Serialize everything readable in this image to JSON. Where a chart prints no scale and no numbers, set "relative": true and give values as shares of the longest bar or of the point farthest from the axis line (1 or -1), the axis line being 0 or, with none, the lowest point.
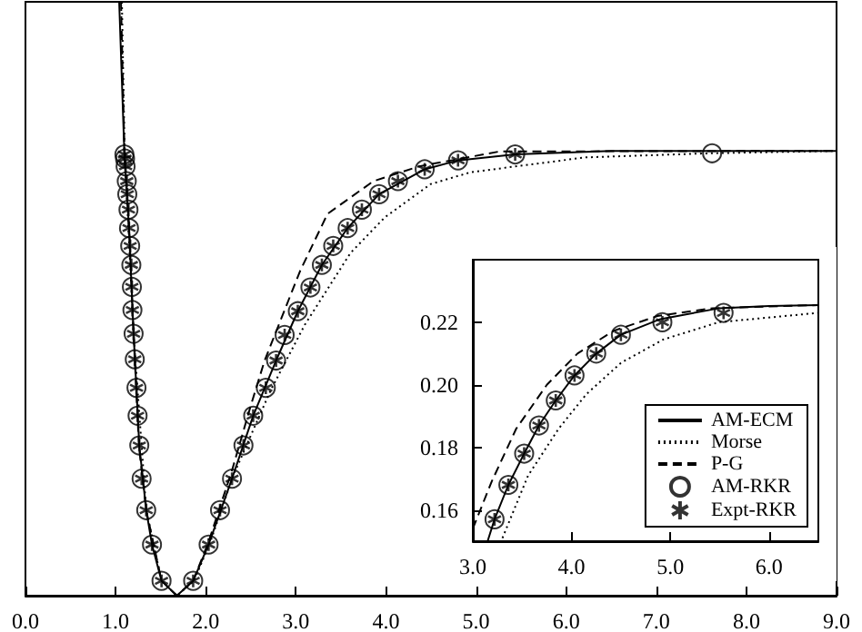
{
  "chart_data": [
    {
      "type": "line",
      "relative": true,
      "xlim": [
        0,
        9
      ],
      "xticks": [
        {
          "value": 0,
          "label": "0.0"
        },
        {
          "value": 1,
          "label": "1.0"
        },
        {
          "value": 2,
          "label": "2.0"
        },
        {
          "value": 3,
          "label": "3.0"
        },
        {
          "value": 4,
          "label": "4.0"
        },
        {
          "value": 5,
          "label": "5.0"
        },
        {
          "value": 6,
          "label": "6.0"
        },
        {
          "value": 7,
          "label": "7.0"
        },
        {
          "value": 8,
          "label": "8.0"
        },
        {
          "value": 9,
          "label": "9.0"
        }
      ],
      "grid": false,
      "legend": false,
      "series": [
        {
          "type": "line",
          "line_style": "solid",
          "color": "#000000",
          "x": [
            1.04,
            1.098,
            1.149,
            1.2,
            1.263,
            1.34,
            1.404,
            1.51,
            1.68,
            1.861,
            2.032,
            2.292,
            2.527,
            2.781,
            3.022,
            3.289,
            3.575,
            3.924,
            4.43,
            4.8,
            5.434,
            6.5,
            9.0
          ],
          "values": [
            1.0,
            0.743,
            0.619,
            0.441,
            0.253,
            0.144,
            0.086,
            0.025,
            0,
            0.025,
            0.086,
            0.197,
            0.303,
            0.396,
            0.479,
            0.557,
            0.619,
            0.676,
            0.718,
            0.733,
            0.743,
            0.749,
            0.749
          ]
        },
        {
          "type": "line",
          "line_style": "dotted",
          "color": "#000000",
          "x": [
            1.07,
            1.1,
            1.2,
            1.34,
            1.51,
            1.68,
            1.87,
            2.05,
            2.3,
            2.718,
            3.099,
            3.606,
            3.987,
            4.495,
            4.939,
            6.21,
            7.6,
            9.0
          ],
          "values": [
            1.0,
            0.75,
            0.44,
            0.144,
            0.025,
            0,
            0.025,
            0.09,
            0.2,
            0.345,
            0.456,
            0.577,
            0.637,
            0.693,
            0.713,
            0.738,
            0.745,
            0.749
          ]
        },
        {
          "type": "line",
          "line_style": "dashed",
          "color": "#000000",
          "x": [
            1.06,
            1.1,
            1.15,
            1.2,
            1.26,
            1.34,
            1.51,
            1.68,
            1.86,
            2.03,
            2.29,
            2.5,
            2.654,
            3.048,
            3.352,
            3.861,
            4.368,
            5.26,
            9.0
          ],
          "values": [
            1.0,
            0.74,
            0.62,
            0.44,
            0.25,
            0.144,
            0.025,
            0,
            0.025,
            0.09,
            0.21,
            0.32,
            0.396,
            0.547,
            0.643,
            0.698,
            0.723,
            0.748,
            0.749
          ]
        },
        {
          "type": "scatter",
          "marker": "circle",
          "color": "#000000",
          "x": [
            1.098,
            1.105,
            1.111,
            1.124,
            1.13,
            1.143,
            1.149,
            1.162,
            1.175,
            1.181,
            1.187,
            1.2,
            1.213,
            1.232,
            1.244,
            1.263,
            1.289,
            1.34,
            1.404,
            1.51,
            1.861,
            2.032,
            2.159,
            2.292,
            2.419,
            2.527,
            2.667,
            2.781,
            2.876,
            3.022,
            3.162,
            3.289,
            3.415,
            3.575,
            3.733,
            3.924,
            4.133,
            4.43,
            4.8,
            5.434,
            7.619
          ],
          "values": [
            0.743,
            0.736,
            0.723,
            0.698,
            0.676,
            0.65,
            0.619,
            0.589,
            0.557,
            0.52,
            0.481,
            0.441,
            0.398,
            0.35,
            0.303,
            0.253,
            0.197,
            0.144,
            0.086,
            0.025,
            0.025,
            0.086,
            0.144,
            0.197,
            0.253,
            0.303,
            0.35,
            0.396,
            0.439,
            0.479,
            0.519,
            0.557,
            0.589,
            0.619,
            0.65,
            0.676,
            0.698,
            0.718,
            0.733,
            0.743,
            0.745
          ]
        },
        {
          "type": "scatter",
          "marker": "cross",
          "color": "#000000",
          "x": [
            1.098,
            1.105,
            1.111,
            1.124,
            1.13,
            1.143,
            1.149,
            1.162,
            1.175,
            1.181,
            1.187,
            1.2,
            1.213,
            1.232,
            1.244,
            1.263,
            1.289,
            1.34,
            1.404,
            1.51,
            1.861,
            2.032,
            2.159,
            2.292,
            2.419,
            2.527,
            2.667,
            2.781,
            2.876,
            3.022,
            3.162,
            3.289,
            3.415,
            3.575,
            3.733,
            3.924,
            4.133,
            4.43,
            4.8,
            5.434
          ],
          "values": [
            0.743,
            0.736,
            0.723,
            0.698,
            0.676,
            0.65,
            0.619,
            0.589,
            0.557,
            0.52,
            0.481,
            0.441,
            0.398,
            0.35,
            0.303,
            0.253,
            0.197,
            0.144,
            0.086,
            0.025,
            0.025,
            0.086,
            0.144,
            0.197,
            0.253,
            0.303,
            0.35,
            0.396,
            0.439,
            0.479,
            0.519,
            0.557,
            0.589,
            0.619,
            0.65,
            0.676,
            0.698,
            0.718,
            0.733,
            0.743
          ]
        }
      ]
    },
    {
      "type": "line",
      "xlim": [
        3.0,
        6.5
      ],
      "xticks": [
        {
          "value": 3,
          "label": "3.0"
        },
        {
          "value": 4,
          "label": "4.0"
        },
        {
          "value": 5,
          "label": "5.0"
        },
        {
          "value": 6,
          "label": "6.0"
        }
      ],
      "ylim": [
        0.15,
        0.24
      ],
      "yticks": [
        {
          "value": 0.16,
          "label": "0.16"
        },
        {
          "value": 0.18,
          "label": "0.18"
        },
        {
          "value": 0.2,
          "label": "0.20"
        },
        {
          "value": 0.22,
          "label": "0.22"
        }
      ],
      "grid": false,
      "legend": "bottom right",
      "series": [
        {
          "name": "AM-ECM",
          "type": "line",
          "line_style": "solid",
          "color": "#000000",
          "x": [
            3.15,
            3.22,
            3.36,
            3.52,
            3.67,
            3.84,
            4.03,
            4.25,
            4.5,
            4.9,
            5.5,
            6.0,
            6.5
          ],
          "values": [
            0.15,
            0.157,
            0.168,
            0.178,
            0.187,
            0.195,
            0.203,
            0.21,
            0.216,
            0.221,
            0.2245,
            0.2252,
            0.2255
          ]
        },
        {
          "name": "Morse",
          "type": "line",
          "line_style": "dotted",
          "color": "#000000",
          "x": [
            3.3,
            3.56,
            3.87,
            4.15,
            4.5,
            4.93,
            5.49,
            6.5
          ],
          "values": [
            0.151,
            0.171,
            0.186,
            0.197,
            0.207,
            0.2145,
            0.22,
            0.223
          ]
        },
        {
          "name": "P-G",
          "type": "line",
          "line_style": "dashed",
          "color": "#000000",
          "x": [
            3.0,
            3.19,
            3.44,
            3.75,
            4.06,
            4.43,
            4.87,
            5.43,
            6.5
          ],
          "values": [
            0.154,
            0.169,
            0.186,
            0.2,
            0.21,
            0.2173,
            0.222,
            0.2245,
            0.2255
          ]
        },
        {
          "name": "AM-RKR",
          "type": "scatter",
          "marker": "circle",
          "color": "#000000",
          "x": [
            3.22,
            3.36,
            3.52,
            3.67,
            3.84,
            4.03,
            4.25,
            4.5,
            4.92,
            5.54
          ],
          "values": [
            0.157,
            0.168,
            0.178,
            0.187,
            0.195,
            0.203,
            0.21,
            0.216,
            0.22,
            0.223
          ]
        },
        {
          "name": "Expt-RKR",
          "type": "scatter",
          "marker": "cross",
          "color": "#000000",
          "x": [
            3.22,
            3.36,
            3.52,
            3.67,
            3.84,
            4.03,
            4.25,
            4.5,
            4.92,
            5.54
          ],
          "values": [
            0.157,
            0.168,
            0.178,
            0.187,
            0.195,
            0.203,
            0.21,
            0.216,
            0.22,
            0.223
          ]
        }
      ]
    }
  ]
}
